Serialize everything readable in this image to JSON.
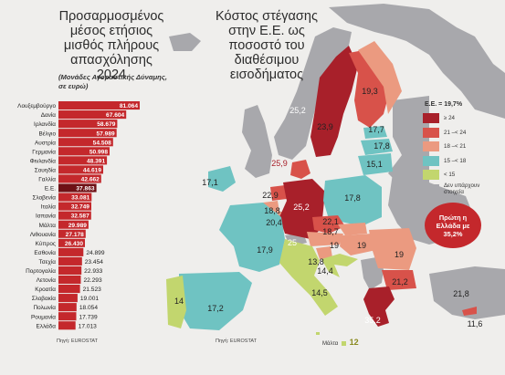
{
  "left_chart": {
    "title": "Προσαρμοσμένος μέσος ετήσιος μισθός πλήρους απασχόλησης 2024",
    "subtitle": "(Μονάδες Αγοραστικής Δύναμης, σε ευρώ)",
    "source": "Πηγή: EUROSTAT"
  },
  "right_map": {
    "title": "Κόστος στέγασης στην Ε.Ε. ως ποσοστό του διαθέσιμου εισοδήματος",
    "source": "Πηγή: EUROSTAT",
    "legend_title": "Ε.Ε. = 19,7%",
    "legend": [
      {
        "label": "≥ 24",
        "color": "#a8202a"
      },
      {
        "label": "21 –< 24",
        "color": "#d8524a"
      },
      {
        "label": "18 –< 21",
        "color": "#eb9a80"
      },
      {
        "label": "15 –< 18",
        "color": "#6fc3c2"
      },
      {
        "label": "< 15",
        "color": "#c2d66e"
      },
      {
        "label": "Δεν υπάρχουν στοιχεία",
        "color": "#a8a8ac"
      }
    ],
    "callout": "Πρώτη η Ελλάδα με 35,2%",
    "malta_label": "Μάλτα",
    "malta_value": "12",
    "country_values": [
      {
        "value": "25,2",
        "color": "#ffffff"
      },
      {
        "value": "23,9",
        "color": "#222222"
      },
      {
        "value": "19,3",
        "color": "#222222"
      },
      {
        "value": "17,7",
        "color": "#222222"
      },
      {
        "value": "17,8",
        "color": "#222222"
      },
      {
        "value": "15,1",
        "color": "#222222"
      },
      {
        "value": "25,9",
        "color": "#a8202a"
      },
      {
        "value": "17,1",
        "color": "#222222"
      },
      {
        "value": "22,9",
        "color": "#222222"
      },
      {
        "value": "18,8",
        "color": "#222222"
      },
      {
        "value": "20,4",
        "color": "#222222"
      },
      {
        "value": "25,2",
        "color": "#ffffff"
      },
      {
        "value": "17,8",
        "color": "#222222"
      },
      {
        "value": "22,1",
        "color": "#222222"
      },
      {
        "value": "18,7",
        "color": "#222222"
      },
      {
        "value": "17,9",
        "color": "#222222"
      },
      {
        "value": "25",
        "color": "#ffffff"
      },
      {
        "value": "19",
        "color": "#222222"
      },
      {
        "value": "19",
        "color": "#222222"
      },
      {
        "value": "19",
        "color": "#222222"
      },
      {
        "value": "13,8",
        "color": "#222222"
      },
      {
        "value": "14,4",
        "color": "#222222"
      },
      {
        "value": "14,5",
        "color": "#222222"
      },
      {
        "value": "14",
        "color": "#222222"
      },
      {
        "value": "17,2",
        "color": "#222222"
      },
      {
        "value": "21,2",
        "color": "#222222"
      },
      {
        "value": "35,2",
        "color": "#ffffff"
      },
      {
        "value": "21,8",
        "color": "#222222"
      },
      {
        "value": "11,6",
        "color": "#222222"
      }
    ]
  },
  "chart_data": {
    "type": "bar",
    "orientation": "horizontal",
    "highlight_category": "Ε.Ε.",
    "bar_color": "#c4282c",
    "highlight_color": "#6e1116",
    "categories": [
      "Λουξεμβούργο",
      "Δανία",
      "Ιρλανδία",
      "Βέλγιο",
      "Αυστρία",
      "Γερμανία",
      "Φινλανδία",
      "Σουηδία",
      "Γαλλία",
      "Ε.Ε.",
      "Σλοβενία",
      "Ιταλία",
      "Ισπανία",
      "Μάλτα",
      "Λιθουανία",
      "Κύπρος",
      "Εσθονία",
      "Τσεχία",
      "Πορτογαλία",
      "Λετονία",
      "Κροατία",
      "Σλοβακία",
      "Πολωνία",
      "Ρουμανία",
      "Ελλάδα"
    ],
    "labels": [
      "81.064",
      "67.604",
      "58.679",
      "57.989",
      "54.508",
      "50.998",
      "48.391",
      "44.619",
      "42.662",
      "37.863",
      "33.081",
      "32.749",
      "32.587",
      "29.989",
      "27.178",
      "26.430",
      "24.899",
      "23.454",
      "22.933",
      "22.293",
      "21.523",
      "19.001",
      "18.054",
      "17.739",
      "17.013"
    ],
    "values": [
      81064,
      67604,
      58679,
      57989,
      54508,
      50998,
      48391,
      44619,
      42662,
      37863,
      33081,
      32749,
      32587,
      29989,
      27178,
      26430,
      24899,
      23454,
      22933,
      22293,
      21523,
      19001,
      18054,
      17739,
      17013
    ]
  }
}
